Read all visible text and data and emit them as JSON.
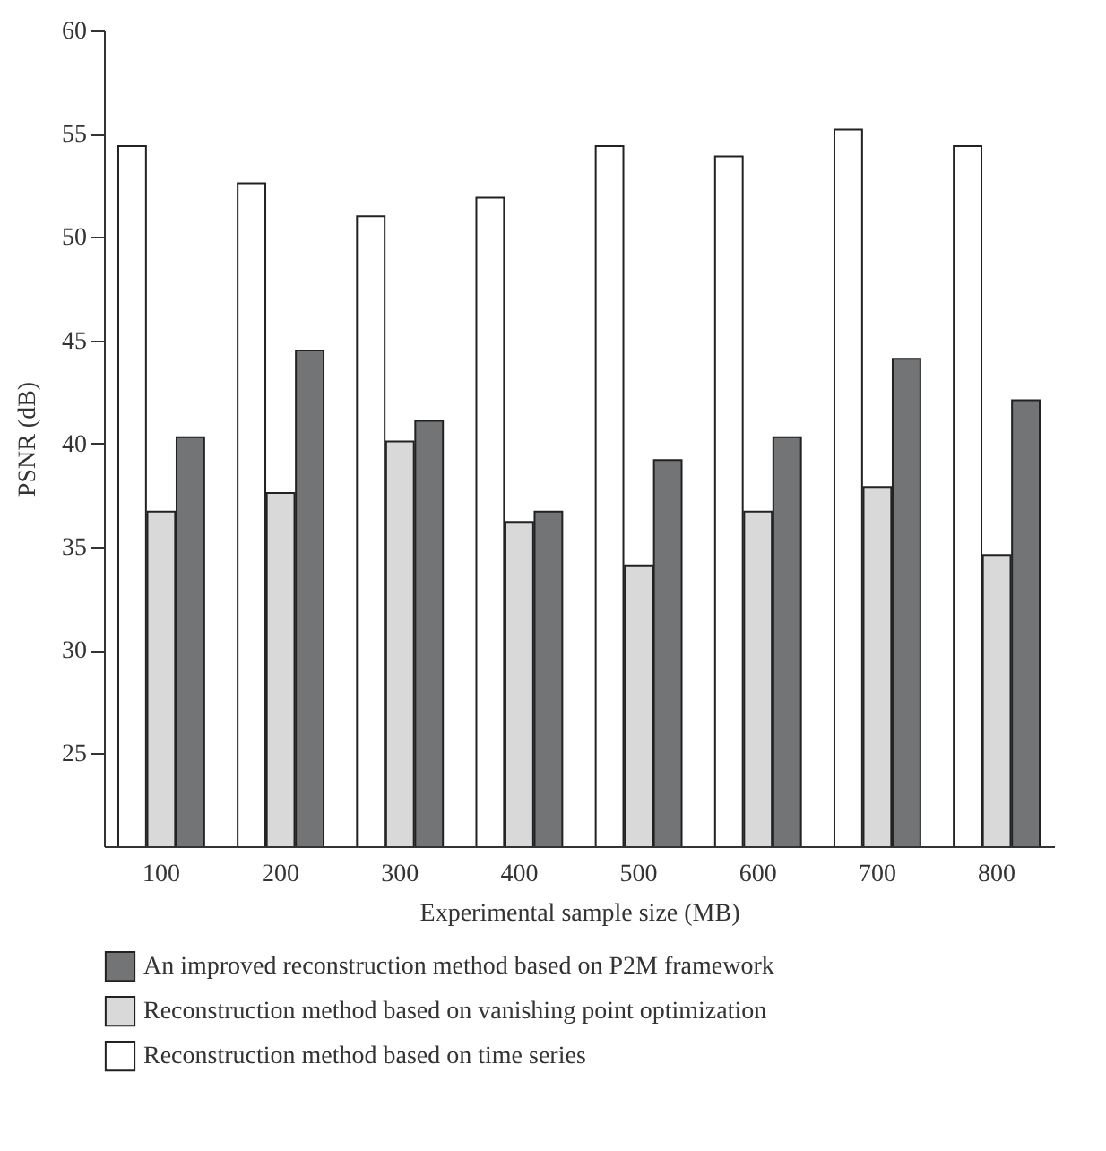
{
  "chart_data": {
    "type": "bar",
    "xlabel": "Experimental sample size (MB)",
    "ylabel": "PSNR (dB)",
    "categories": [
      "100",
      "200",
      "300",
      "400",
      "500",
      "600",
      "700",
      "800"
    ],
    "series": [
      {
        "name": "An improved reconstruction method based on P2M framework",
        "color": "#737476",
        "values": [
          40.3,
          44.5,
          41.1,
          36.7,
          39.2,
          40.3,
          44.1,
          42.1
        ]
      },
      {
        "name": "Reconstruction method based on vanishing point optimization",
        "color": "#d9d9d9",
        "values": [
          36.7,
          37.6,
          40.1,
          36.2,
          34.1,
          36.7,
          37.9,
          34.6
        ]
      },
      {
        "name": "Reconstruction method based on time series",
        "color": "#ffffff",
        "values": [
          54.4,
          52.6,
          51.0,
          51.9,
          54.4,
          53.9,
          55.2,
          54.4
        ]
      }
    ],
    "ylim": [
      20.5,
      60
    ],
    "yticks": [
      25,
      30,
      35,
      40,
      45,
      50,
      55,
      60
    ],
    "grid": false,
    "legend": "bottom"
  }
}
